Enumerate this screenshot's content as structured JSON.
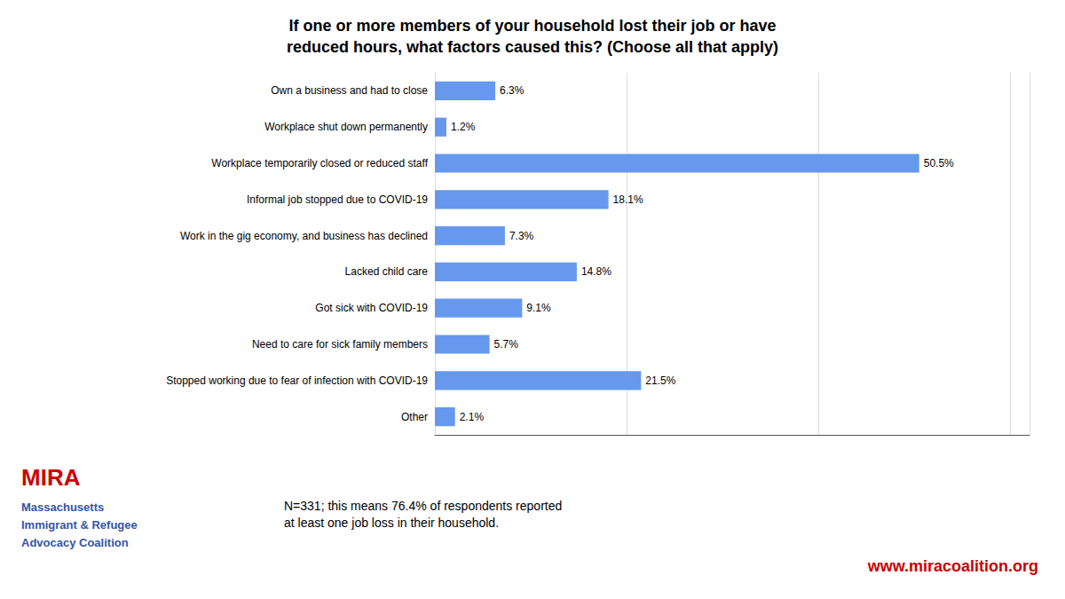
{
  "chart_data": {
    "type": "bar",
    "orientation": "horizontal",
    "title": "If one or more members of your household lost their job or have\nreduced hours, what factors caused this? (Choose all that apply)",
    "categories": [
      "Own a business and had to close",
      "Workplace shut down permanently",
      "Workplace temporarily closed or reduced staff",
      "Informal job stopped due to COVID-19",
      "Work in the gig economy, and business has declined",
      "Lacked child care",
      "Got sick with COVID-19",
      "Need to care for sick family members",
      "Stopped working due to fear of infection with COVID-19",
      "Other"
    ],
    "values": [
      6.3,
      1.2,
      50.5,
      18.1,
      7.3,
      14.8,
      9.1,
      5.7,
      21.5,
      2.1
    ],
    "value_labels": [
      "6.3%",
      "1.2%",
      "50.5%",
      "18.1%",
      "7.3%",
      "14.8%",
      "9.1%",
      "5.7%",
      "21.5%",
      "2.1%"
    ],
    "data_labels": true,
    "color": "#6699ee",
    "xlim": [
      0,
      62
    ],
    "xticks": [
      0,
      20,
      40,
      60
    ],
    "grid": true,
    "tick_labels": "y",
    "annotations": [
      {
        "text": "N=331; this means 76.4% of respondents reported\nat least one job loss in their household."
      },
      {
        "text": "www.miracoalition.org",
        "color": "#cc0000"
      },
      {
        "text": "MIRA",
        "color": "#cc0000"
      },
      {
        "text": "Massachusetts",
        "color": "#3355aa"
      },
      {
        "text": "Immigrant & Refugee",
        "color": "#3355aa"
      },
      {
        "text": "Advocacy Coalition",
        "color": "#3355aa"
      }
    ]
  }
}
